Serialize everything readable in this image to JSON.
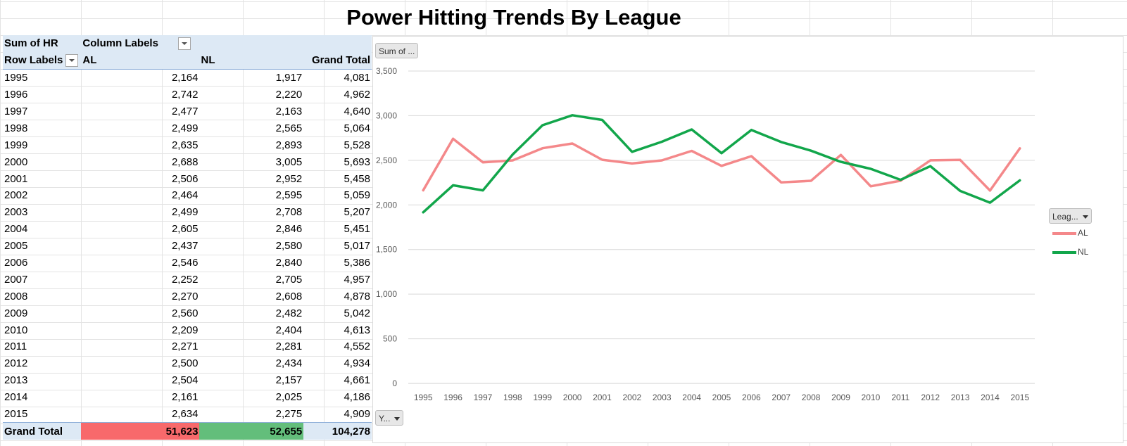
{
  "title": "Power Hitting Trends By League",
  "pivot": {
    "value_field": "Sum of HR",
    "column_labels": "Column Labels",
    "row_labels": "Row Labels",
    "columns": [
      "AL",
      "NL",
      "Grand Total"
    ],
    "rows": [
      {
        "year": "1995",
        "al": "2,164",
        "nl": "1,917",
        "total": "4,081"
      },
      {
        "year": "1996",
        "al": "2,742",
        "nl": "2,220",
        "total": "4,962"
      },
      {
        "year": "1997",
        "al": "2,477",
        "nl": "2,163",
        "total": "4,640"
      },
      {
        "year": "1998",
        "al": "2,499",
        "nl": "2,565",
        "total": "5,064"
      },
      {
        "year": "1999",
        "al": "2,635",
        "nl": "2,893",
        "total": "5,528"
      },
      {
        "year": "2000",
        "al": "2,688",
        "nl": "3,005",
        "total": "5,693"
      },
      {
        "year": "2001",
        "al": "2,506",
        "nl": "2,952",
        "total": "5,458"
      },
      {
        "year": "2002",
        "al": "2,464",
        "nl": "2,595",
        "total": "5,059"
      },
      {
        "year": "2003",
        "al": "2,499",
        "nl": "2,708",
        "total": "5,207"
      },
      {
        "year": "2004",
        "al": "2,605",
        "nl": "2,846",
        "total": "5,451"
      },
      {
        "year": "2005",
        "al": "2,437",
        "nl": "2,580",
        "total": "5,017"
      },
      {
        "year": "2006",
        "al": "2,546",
        "nl": "2,840",
        "total": "5,386"
      },
      {
        "year": "2007",
        "al": "2,252",
        "nl": "2,705",
        "total": "4,957"
      },
      {
        "year": "2008",
        "al": "2,270",
        "nl": "2,608",
        "total": "4,878"
      },
      {
        "year": "2009",
        "al": "2,560",
        "nl": "2,482",
        "total": "5,042"
      },
      {
        "year": "2010",
        "al": "2,209",
        "nl": "2,404",
        "total": "4,613"
      },
      {
        "year": "2011",
        "al": "2,271",
        "nl": "2,281",
        "total": "4,552"
      },
      {
        "year": "2012",
        "al": "2,500",
        "nl": "2,434",
        "total": "4,934"
      },
      {
        "year": "2013",
        "al": "2,504",
        "nl": "2,157",
        "total": "4,661"
      },
      {
        "year": "2014",
        "al": "2,161",
        "nl": "2,025",
        "total": "4,186"
      },
      {
        "year": "2015",
        "al": "2,634",
        "nl": "2,275",
        "total": "4,909"
      }
    ],
    "grand_total": {
      "label": "Grand Total",
      "al": "51,623",
      "nl": "52,655",
      "total": "104,278"
    }
  },
  "chart_buttons": {
    "values_field": "Sum of ...",
    "legend_field": "Leag...",
    "axis_field": "Y..."
  },
  "colors": {
    "al": "#f4888a",
    "nl": "#12a64b",
    "total_al_fill": "#f8696b",
    "total_nl_fill": "#63be7b",
    "header_fill": "#dde9f5"
  },
  "chart_data": {
    "type": "line",
    "title": "",
    "xlabel": "",
    "ylabel": "",
    "ylim": [
      0,
      3500
    ],
    "yticks": [
      0,
      500,
      1000,
      1500,
      2000,
      2500,
      3000,
      3500
    ],
    "ytick_labels": [
      "0",
      "500",
      "1,000",
      "1,500",
      "2,000",
      "2,500",
      "3,000",
      "3,500"
    ],
    "grid": true,
    "legend": "right",
    "categories": [
      "1995",
      "1996",
      "1997",
      "1998",
      "1999",
      "2000",
      "2001",
      "2002",
      "2003",
      "2004",
      "2005",
      "2006",
      "2007",
      "2008",
      "2009",
      "2010",
      "2011",
      "2012",
      "2013",
      "2014",
      "2015"
    ],
    "series": [
      {
        "name": "AL",
        "values": [
          2164,
          2742,
          2477,
          2499,
          2635,
          2688,
          2506,
          2464,
          2499,
          2605,
          2437,
          2546,
          2252,
          2270,
          2560,
          2209,
          2271,
          2500,
          2504,
          2161,
          2634
        ]
      },
      {
        "name": "NL",
        "values": [
          1917,
          2220,
          2163,
          2565,
          2893,
          3005,
          2952,
          2595,
          2708,
          2846,
          2580,
          2840,
          2705,
          2608,
          2482,
          2404,
          2281,
          2434,
          2157,
          2025,
          2275
        ]
      }
    ]
  }
}
